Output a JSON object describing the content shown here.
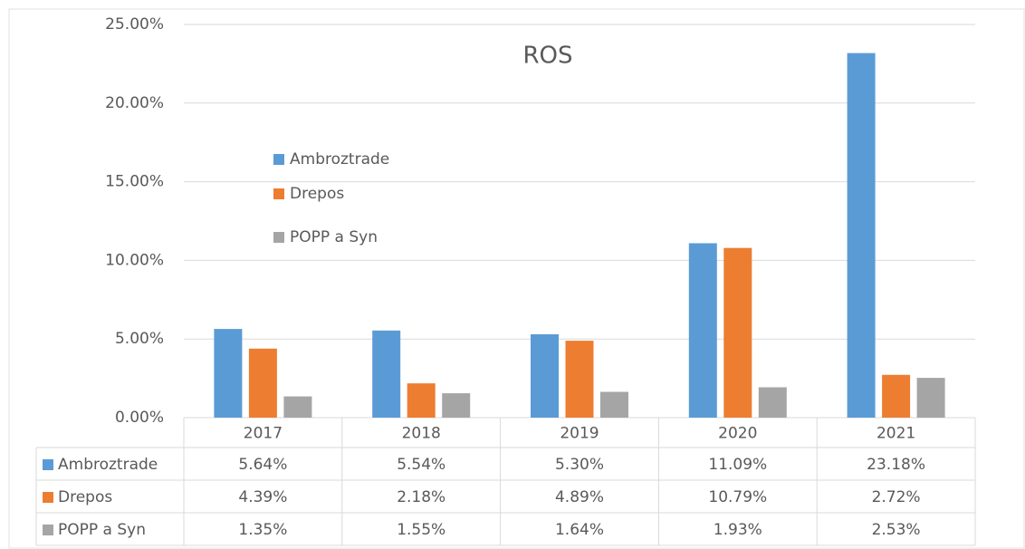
{
  "chart_data": {
    "type": "bar",
    "title": "ROS",
    "categories": [
      "2017",
      "2018",
      "2019",
      "2020",
      "2021"
    ],
    "series": [
      {
        "name": "Ambroztrade",
        "color": "#5b9bd5",
        "values": [
          5.64,
          5.54,
          5.3,
          11.09,
          23.18
        ],
        "value_labels": [
          "5.64%",
          "5.54%",
          "5.30%",
          "11.09%",
          "23.18%"
        ]
      },
      {
        "name": "Drepos",
        "color": "#ed7d31",
        "values": [
          4.39,
          2.18,
          4.89,
          10.79,
          2.72
        ],
        "value_labels": [
          "4.39%",
          "2.18%",
          "4.89%",
          "10.79%",
          "2.72%"
        ]
      },
      {
        "name": "POPP a Syn",
        "color": "#a5a5a5",
        "values": [
          1.35,
          1.55,
          1.64,
          1.93,
          2.53
        ],
        "value_labels": [
          "1.35%",
          "1.55%",
          "1.64%",
          "1.93%",
          "2.53%"
        ]
      }
    ],
    "ylim": [
      0,
      25
    ],
    "yticks": [
      {
        "value": 0,
        "label": "0.00%"
      },
      {
        "value": 5,
        "label": "5.00%"
      },
      {
        "value": 10,
        "label": "10.00%"
      },
      {
        "value": 15,
        "label": "15.00%"
      },
      {
        "value": 20,
        "label": "20.00%"
      },
      {
        "value": 25,
        "label": "25.00%"
      }
    ],
    "grid": true,
    "legend": "inside-left"
  }
}
